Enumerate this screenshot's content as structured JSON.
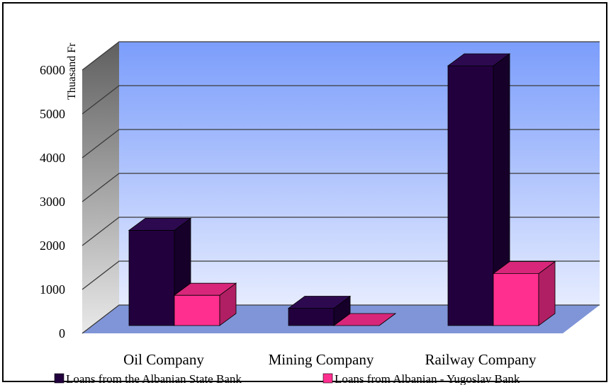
{
  "chart_data": {
    "type": "bar",
    "title": "",
    "xlabel": "",
    "ylabel": "Thuasand Fr",
    "categories": [
      "Oil Company",
      "Mining Company",
      "Railway Company"
    ],
    "series": [
      {
        "name": "Loans from the Albanian State Bank",
        "values": [
          2200,
          400,
          6000
        ]
      },
      {
        "name": "Loans from Albanian - Yugoslav Bank",
        "values": [
          700,
          0,
          1200
        ]
      }
    ],
    "ylim": [
      0,
      6000
    ],
    "yticks": [
      0,
      1000,
      2000,
      3000,
      4000,
      5000,
      6000
    ],
    "grid": true,
    "legend_position": "bottom",
    "style": "3d-clustered-column",
    "colors": {
      "series1_front": "#22003d",
      "series1_side": "#16002a",
      "series1_top": "#2d0a50",
      "series2_front": "#ff2f8f",
      "series2_side": "#b01f63",
      "series2_top": "#d8277a",
      "wall_top": "#7b9dfb",
      "wall_bottom": "#e6ecff",
      "side_wall_top": "#5f5f5f",
      "side_wall_bottom": "#e9e9e9",
      "floor": "#8095d8",
      "gridline": "#3a3a3a"
    }
  }
}
